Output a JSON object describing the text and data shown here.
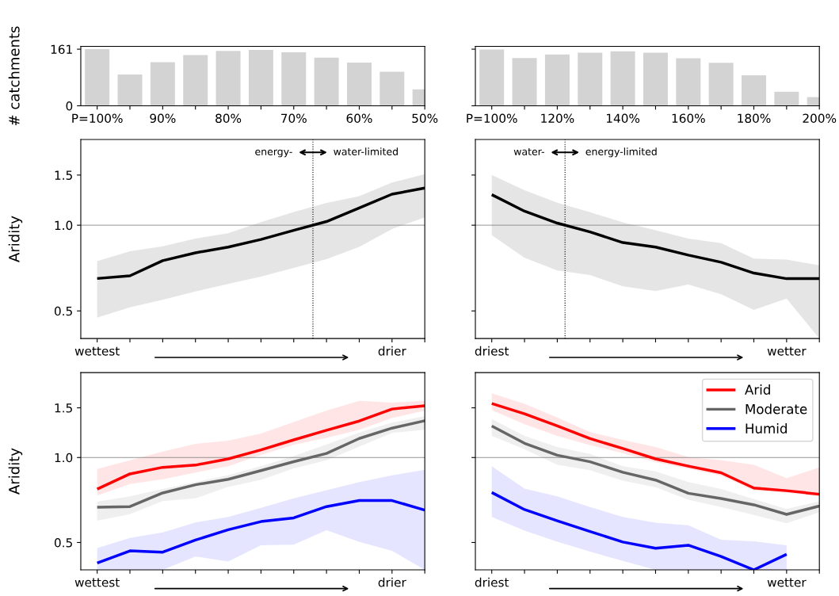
{
  "chart_data": [
    {
      "type": "bar",
      "ylabel": "# catchments",
      "categories": [
        "P=100%",
        null,
        "90%",
        null,
        "80%",
        null,
        "70%",
        null,
        "60%",
        null,
        "50%"
      ],
      "values": [
        161,
        89,
        124,
        144,
        156,
        159,
        152,
        137,
        123,
        97,
        47
      ],
      "color": "#d3d3d3",
      "ylim": [
        0,
        169
      ],
      "yticks": [
        0,
        161
      ]
    },
    {
      "type": "bar",
      "categories": [
        "P=100%",
        null,
        "120%",
        null,
        "140%",
        null,
        "160%",
        null,
        "180%",
        null,
        "200%"
      ],
      "values": [
        160,
        136,
        146,
        151,
        155,
        151,
        135,
        122,
        87,
        40,
        25
      ],
      "color": "#d3d3d3",
      "ylim": [
        0,
        169
      ],
      "yticks": [
        0,
        161
      ],
      "tick_labels": "x"
    },
    {
      "type": "line",
      "ylabel": "Aridity",
      "log": true,
      "categories": [
        "wettest",
        null,
        null,
        null,
        null,
        null,
        null,
        null,
        null,
        "drier",
        null
      ],
      "ylim": [
        0.4,
        2.0
      ],
      "yticks": [
        0.5,
        {
          "value": 1,
          "label": "1.0"
        },
        1.5
      ],
      "series": [
        {
          "color": "#000000",
          "values": [
            0.65,
            0.664,
            0.751,
            0.8,
            0.838,
            0.891,
            0.959,
            1.03,
            1.15,
            1.285,
            1.35
          ],
          "upper": [
            0.748,
            0.81,
            0.843,
            0.897,
            0.938,
            1.025,
            1.112,
            1.197,
            1.265,
            1.413,
            1.51
          ],
          "lower": [
            0.474,
            0.515,
            0.547,
            0.585,
            0.622,
            0.66,
            0.708,
            0.76,
            0.839,
            0.97,
            1.066
          ]
        }
      ],
      "ref_lines": [
        {
          "axis": "y",
          "value": 1.0,
          "color": "#808080"
        }
      ],
      "annotations": [
        "energy-",
        "water-limited"
      ]
    },
    {
      "type": "line",
      "log": true,
      "categories": [
        "driest",
        null,
        null,
        null,
        null,
        null,
        null,
        null,
        null,
        "wetter",
        null
      ],
      "ylim": [
        0.4,
        2.0
      ],
      "tick_labels": "x",
      "yticks": [
        0.5,
        1.0,
        1.5
      ],
      "series": [
        {
          "color": "#000000",
          "values": [
            1.28,
            1.12,
            1.017,
            0.947,
            0.869,
            0.838,
            0.785,
            0.741,
            0.679,
            0.649,
            0.649
          ],
          "upper": [
            1.5,
            1.327,
            1.2,
            1.11,
            1.024,
            0.96,
            0.898,
            0.865,
            0.763,
            0.757,
            0.723
          ],
          "lower": [
            0.923,
            0.768,
            0.694,
            0.668,
            0.61,
            0.587,
            0.619,
            0.572,
            0.504,
            0.552,
            0.4
          ]
        }
      ],
      "ref_lines": [
        {
          "axis": "y",
          "value": 1.0,
          "color": "#808080"
        }
      ],
      "annotations": [
        "water-",
        "energy-limited"
      ]
    },
    {
      "type": "line",
      "ylabel": "Aridity",
      "log": true,
      "categories": [
        "wettest",
        null,
        null,
        null,
        null,
        null,
        null,
        null,
        null,
        "drier",
        null
      ],
      "ylim": [
        0.4,
        2.0
      ],
      "yticks": [
        0.5,
        {
          "value": 1,
          "label": "1.0"
        },
        1.5
      ],
      "series": [
        {
          "color": "#ff0000",
          "values": [
            0.773,
            0.875,
            0.923,
            0.94,
            0.989,
            1.064,
            1.155,
            1.249,
            1.347,
            1.485,
            1.525
          ],
          "upper": [
            0.911,
            0.978,
            1.05,
            1.118,
            1.148,
            1.216,
            1.335,
            1.466,
            1.588,
            1.566,
            1.588
          ],
          "lower": [
            0.733,
            0.806,
            0.837,
            0.885,
            0.931,
            1.022,
            1.11,
            1.173,
            1.254,
            1.38,
            1.466
          ]
        },
        {
          "color": "#666666",
          "values": [
            0.667,
            0.67,
            0.749,
            0.801,
            0.837,
            0.899,
            0.967,
            1.034,
            1.168,
            1.271,
            1.35
          ],
          "upper": [
            0.698,
            0.729,
            0.774,
            0.819,
            0.866,
            0.931,
            1.011,
            1.113,
            1.227,
            1.329,
            1.402
          ],
          "lower": [
            0.597,
            0.63,
            0.701,
            0.717,
            0.787,
            0.833,
            0.915,
            0.978,
            1.093,
            1.222,
            1.254
          ]
        },
        {
          "color": "#0000ff",
          "values": [
            0.423,
            0.467,
            0.462,
            0.51,
            0.555,
            0.593,
            0.611,
            0.67,
            0.704,
            0.704,
            0.651
          ],
          "upper": [
            0.478,
            0.519,
            0.543,
            0.589,
            0.616,
            0.663,
            0.717,
            0.766,
            0.819,
            0.865,
            0.905
          ],
          "lower": [
            0.4,
            0.4,
            0.4,
            0.446,
            0.428,
            0.489,
            0.491,
            0.553,
            0.502,
            0.467,
            0.4
          ]
        }
      ],
      "ref_lines": [
        {
          "axis": "y",
          "value": 1.0,
          "color": "#808080"
        }
      ]
    },
    {
      "type": "line",
      "log": true,
      "categories": [
        "driest",
        null,
        null,
        null,
        null,
        null,
        null,
        null,
        null,
        "wetter",
        null
      ],
      "ylim": [
        0.4,
        2.0
      ],
      "tick_labels": "x",
      "legend": "top right",
      "yticks": [
        0.5,
        1.0,
        1.5
      ],
      "series": [
        {
          "name": "Arid",
          "color": "#ff0000",
          "values": [
            1.553,
            1.428,
            1.294,
            1.167,
            1.076,
            0.989,
            0.932,
            0.883,
            0.78,
            0.763,
            0.741
          ],
          "upper": [
            1.688,
            1.549,
            1.386,
            1.231,
            1.155,
            1.09,
            1.004,
            0.979,
            0.942,
            0.846,
            0.922
          ],
          "lower": [
            1.471,
            1.313,
            1.192,
            1.106,
            1.037,
            0.962,
            0.912,
            0.864,
            0.763,
            0.75,
            0.728
          ]
        },
        {
          "name": "Moderate",
          "color": "#666666",
          "values": [
            1.294,
            1.123,
            1.019,
            0.966,
            0.887,
            0.832,
            0.747,
            0.716,
            0.68,
            0.629,
            0.673
          ],
          "upper": [
            1.368,
            1.192,
            1.09,
            1.03,
            0.932,
            0.893,
            0.819,
            0.773,
            0.712,
            0.657,
            0.7
          ],
          "lower": [
            1.192,
            1.071,
            0.942,
            0.902,
            0.828,
            0.785,
            0.709,
            0.668,
            0.626,
            0.585,
            0.64
          ]
        },
        {
          "name": "Humid",
          "color": "#0000ff",
          "values": [
            0.752,
            0.654,
            0.597,
            0.547,
            0.502,
            0.477,
            0.489,
            0.446,
            0.4,
            0.454,
            null
          ],
          "upper": [
            0.932,
            0.776,
            0.728,
            0.668,
            0.616,
            0.588,
            0.575,
            0.511,
            0.505,
            0.489,
            null
          ],
          "lower": [
            0.616,
            0.551,
            0.503,
            0.464,
            0.43,
            0.4,
            0.4,
            0.4,
            0.4,
            0.4,
            null
          ]
        }
      ],
      "ref_lines": [
        {
          "axis": "y",
          "value": 1.0,
          "color": "#808080"
        }
      ]
    }
  ]
}
